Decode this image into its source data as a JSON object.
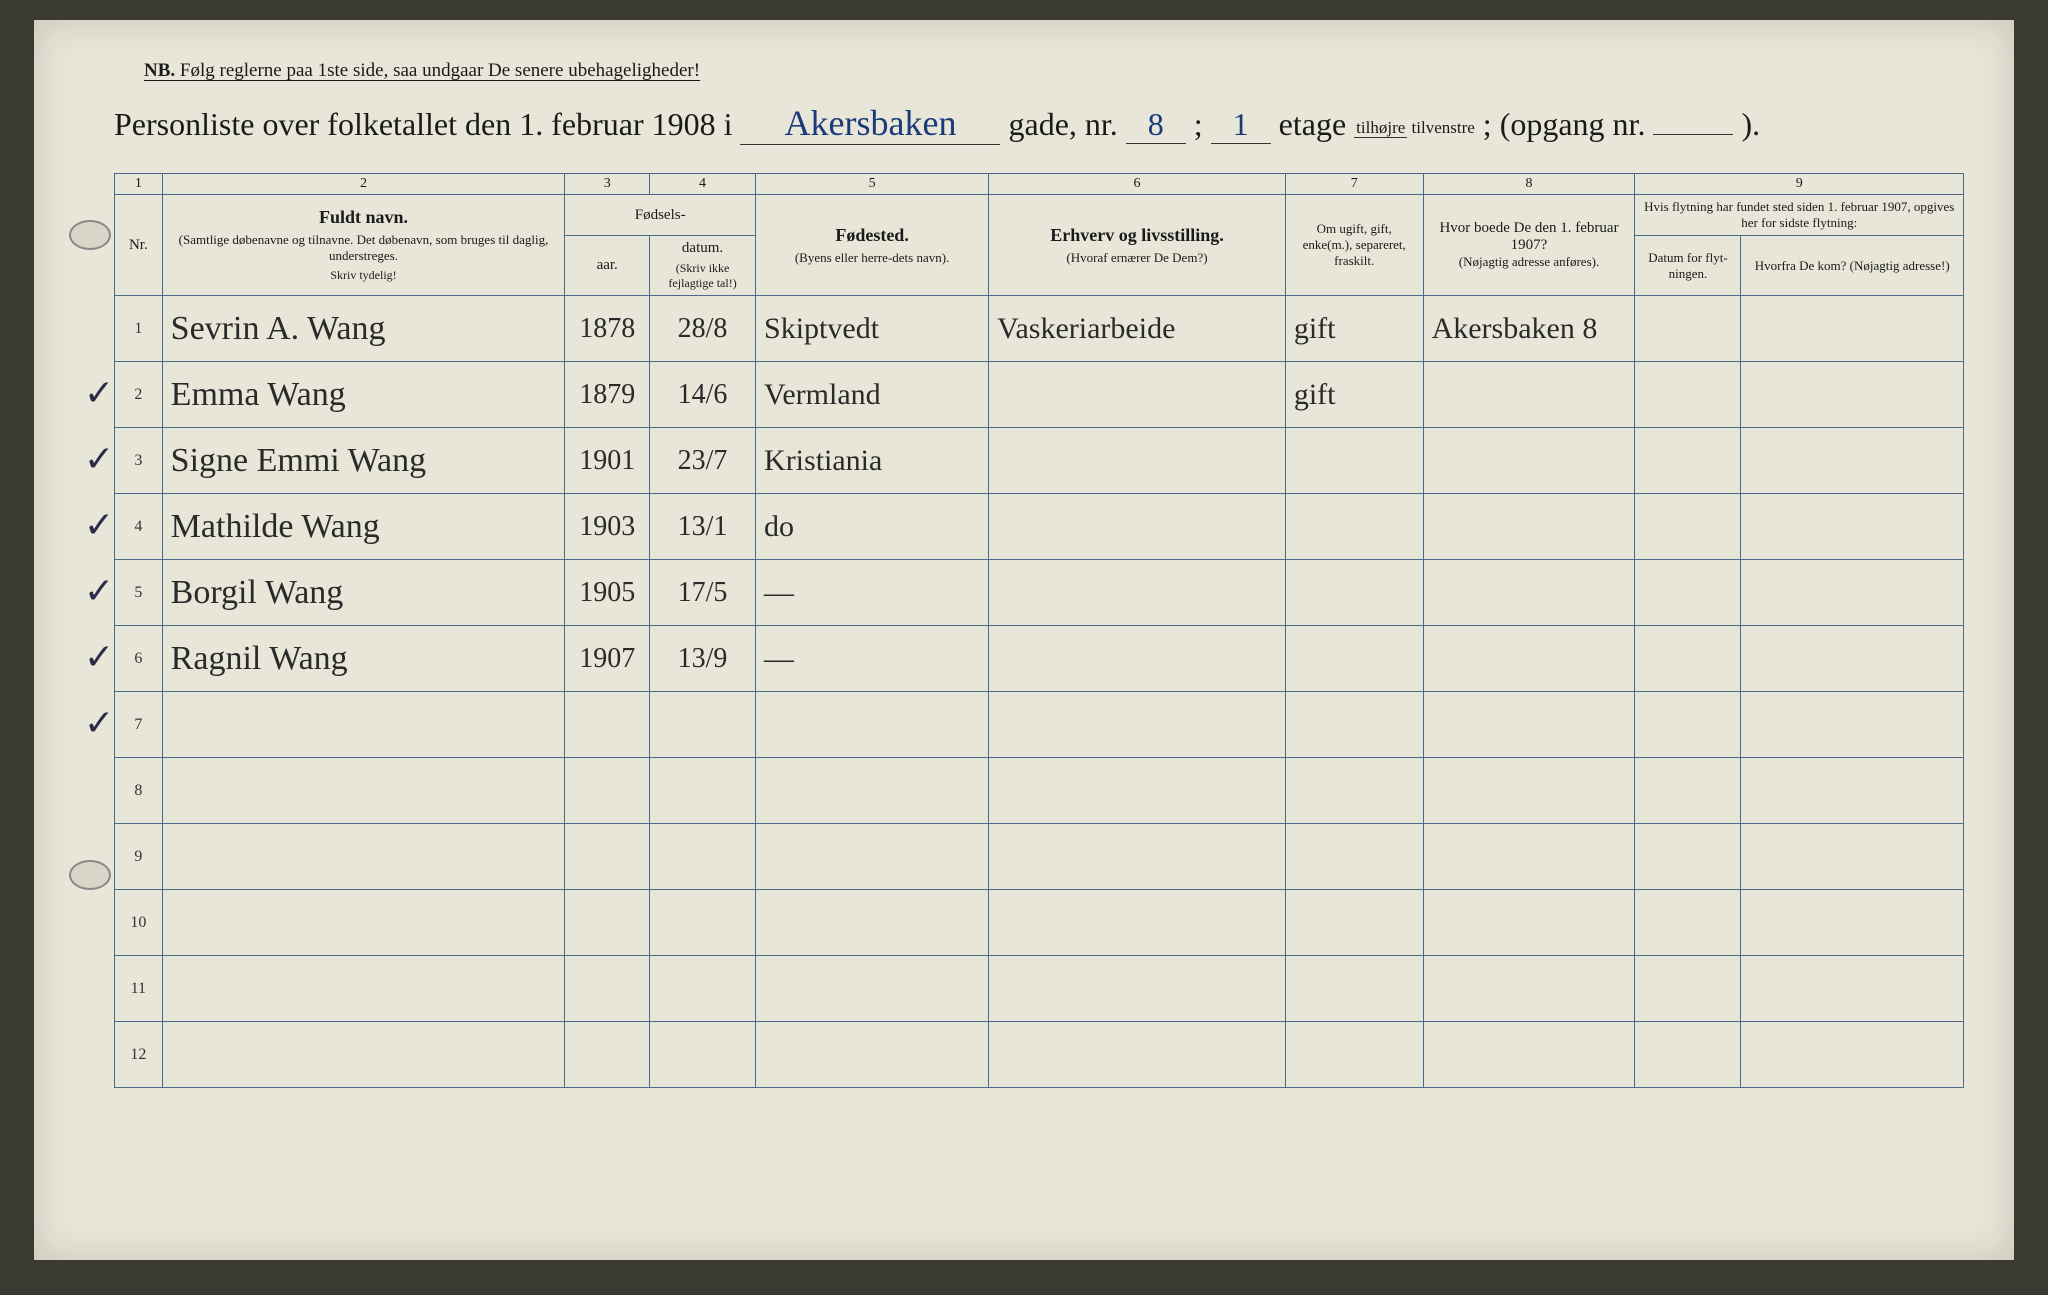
{
  "header": {
    "nb_prefix": "NB.",
    "nb_text": "Følg reglerne paa 1ste side, saa undgaar De senere ubehageligheder!",
    "title_prefix": "Personliste over folketallet den 1. februar 1908 i",
    "street_fill": "Akersbaken",
    "gade_label": "gade, nr.",
    "nr_fill": "8",
    "sep": ";",
    "etage_fill": "1",
    "etage_label": "etage",
    "frac_top": "tilhøjre",
    "frac_bot": "tilvenstre",
    "opgang_label": "; (opgang nr.",
    "opgang_fill": "",
    "end": ")."
  },
  "columns": {
    "nums": [
      "1",
      "2",
      "3",
      "4",
      "5",
      "6",
      "7",
      "8",
      "9"
    ],
    "nr": "Nr.",
    "name_main": "Fuldt navn.",
    "name_sub": "(Samtlige døbenavne og tilnavne. Det døbenavn, som bruges til daglig, understreges.",
    "name_tiny": "Skriv tydelig!",
    "fodsels": "Fødsels-",
    "aar": "aar.",
    "datum": "datum.",
    "fodsels_tiny": "(Skriv ikke fejlagtige tal!)",
    "fodested": "Fødested.",
    "fodested_sub": "(Byens eller herre-dets navn).",
    "erhverv": "Erhverv og livsstilling.",
    "erhverv_sub": "(Hvoraf ernærer De Dem?)",
    "ugift": "Om ugift, gift, enke(m.), separeret, fraskilt.",
    "boede": "Hvor boede De den 1. februar 1907?",
    "boede_sub": "(Nøjagtig adresse anføres).",
    "flyt_top": "Hvis flytning har fundet sted siden 1. februar 1907, opgives her for sidste flytning:",
    "flyt_datum": "Datum for flyt-ningen.",
    "flyt_fra": "Hvorfra De kom? (Nøjagtig adresse!)"
  },
  "rows": [
    {
      "nr": "1",
      "name": "Sevrin A. Wang",
      "year": "1878",
      "date": "28/8",
      "place": "Skiptvedt",
      "occ": "Vaskeriarbeide",
      "stat": "gift",
      "prev": "Akersbaken 8",
      "fd": "",
      "from": ""
    },
    {
      "nr": "2",
      "name": "Emma Wang",
      "year": "1879",
      "date": "14/6",
      "place": "Vermland",
      "occ": "",
      "stat": "gift",
      "prev": "",
      "fd": "",
      "from": ""
    },
    {
      "nr": "3",
      "name": "Signe Emmi Wang",
      "year": "1901",
      "date": "23/7",
      "place": "Kristiania",
      "occ": "",
      "stat": "",
      "prev": "",
      "fd": "",
      "from": ""
    },
    {
      "nr": "4",
      "name": "Mathilde Wang",
      "year": "1903",
      "date": "13/1",
      "place": "do",
      "occ": "",
      "stat": "",
      "prev": "",
      "fd": "",
      "from": ""
    },
    {
      "nr": "5",
      "name": "Borgil Wang",
      "year": "1905",
      "date": "17/5",
      "place": "—",
      "occ": "",
      "stat": "",
      "prev": "",
      "fd": "",
      "from": ""
    },
    {
      "nr": "6",
      "name": "Ragnil Wang",
      "year": "1907",
      "date": "13/9",
      "place": "—",
      "occ": "",
      "stat": "",
      "prev": "",
      "fd": "",
      "from": ""
    },
    {
      "nr": "7",
      "name": "",
      "year": "",
      "date": "",
      "place": "",
      "occ": "",
      "stat": "",
      "prev": "",
      "fd": "",
      "from": ""
    },
    {
      "nr": "8",
      "name": "",
      "year": "",
      "date": "",
      "place": "",
      "occ": "",
      "stat": "",
      "prev": "",
      "fd": "",
      "from": ""
    },
    {
      "nr": "9",
      "name": "",
      "year": "",
      "date": "",
      "place": "",
      "occ": "",
      "stat": "",
      "prev": "",
      "fd": "",
      "from": ""
    },
    {
      "nr": "10",
      "name": "",
      "year": "",
      "date": "",
      "place": "",
      "occ": "",
      "stat": "",
      "prev": "",
      "fd": "",
      "from": ""
    },
    {
      "nr": "11",
      "name": "",
      "year": "",
      "date": "",
      "place": "",
      "occ": "",
      "stat": "",
      "prev": "",
      "fd": "",
      "from": ""
    },
    {
      "nr": "12",
      "name": "",
      "year": "",
      "date": "",
      "place": "",
      "occ": "",
      "stat": "",
      "prev": "",
      "fd": "",
      "from": ""
    }
  ],
  "style": {
    "page_bg": "#e8e6d8",
    "rule_color": "#4a6a8a",
    "ink_color": "#2a2a2a",
    "fill_color": "#1a3a7a",
    "handwriting_font": "Brush Script MT",
    "print_font": "Times New Roman",
    "header_fontsize_pt": 24,
    "body_fontsize_pt": 22
  }
}
